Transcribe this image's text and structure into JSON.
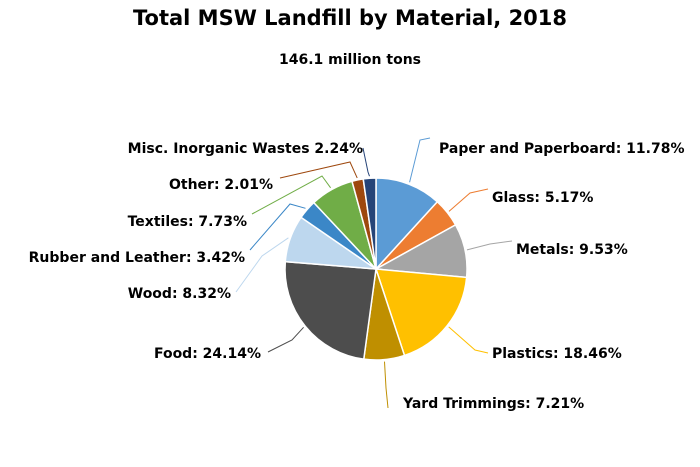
{
  "chart_data": {
    "type": "pie",
    "title": "Total MSW Landfill by Material, 2018",
    "subtitle": "146.1 million tons",
    "series": [
      {
        "name": "Paper and Paperboard",
        "value": 11.78,
        "label": "Paper and Paperboard: 11.78%",
        "color": "#5B9BD5"
      },
      {
        "name": "Glass",
        "value": 5.17,
        "label": "Glass: 5.17%",
        "color": "#ED7D31"
      },
      {
        "name": "Metals",
        "value": 9.53,
        "label": "Metals: 9.53%",
        "color": "#A5A5A5"
      },
      {
        "name": "Plastics",
        "value": 18.46,
        "label": "Plastics: 18.46%",
        "color": "#FFC000"
      },
      {
        "name": "Yard Trimmings",
        "value": 7.21,
        "label": "Yard Trimmings: 7.21%",
        "color": "#BF8F00"
      },
      {
        "name": "Food",
        "value": 24.14,
        "label": "Food: 24.14%",
        "color": "#4D4D4D"
      },
      {
        "name": "Wood",
        "value": 8.32,
        "label": "Wood: 8.32%",
        "color": "#BDD7EE"
      },
      {
        "name": "Rubber and Leather",
        "value": 3.42,
        "label": "Rubber and Leather: 3.42%",
        "color": "#3B87C7"
      },
      {
        "name": "Textiles",
        "value": 7.73,
        "label": "Textiles: 7.73%",
        "color": "#70AD47"
      },
      {
        "name": "Other",
        "value": 2.01,
        "label": "Other: 2.01%",
        "color": "#9E480E"
      },
      {
        "name": "Misc. Inorganic Wastes",
        "value": 2.24,
        "label": "Misc. Inorganic Wastes 2.24%",
        "color": "#264478"
      }
    ]
  }
}
